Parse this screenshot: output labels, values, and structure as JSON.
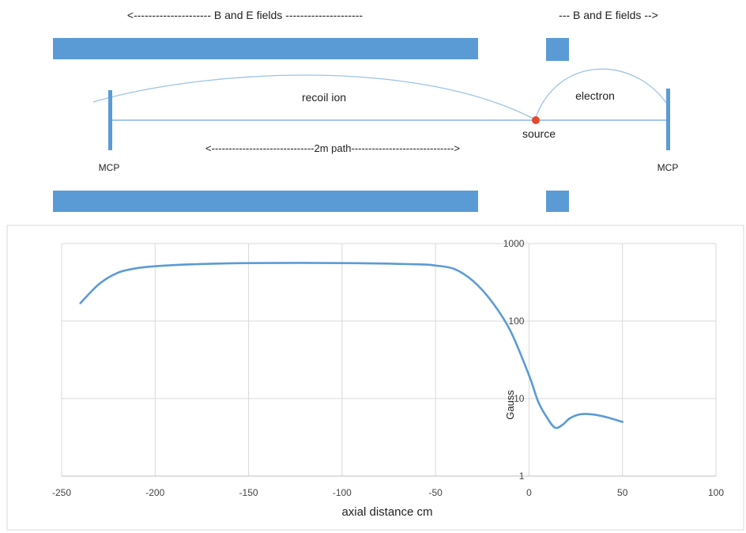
{
  "diagram": {
    "left_field_label": "<--------------------- B and E fields ---------------------",
    "right_field_label": "--- B and E fields -->",
    "recoil_label": "recoil ion",
    "electron_label": "electron",
    "source_label": "source",
    "path_label": "<------------------------------2m path------------------------------>",
    "mcp_left_label": "MCP",
    "mcp_right_label": "MCP",
    "colors": {
      "magnet": "#5b9bd5",
      "trajectory": "#9dc3e6",
      "axis_line": "#6fa8dc",
      "source": "#e8482c"
    }
  },
  "chart_data": {
    "type": "line",
    "title": "",
    "xlabel": "axial distance cm",
    "ylabel": "Gauss",
    "xlim": [
      -250,
      100
    ],
    "ylim": [
      1,
      1000
    ],
    "yscale": "log",
    "x_ticks": [
      "-250",
      "-200",
      "-150",
      "-100",
      "-50",
      "0",
      "50",
      "100"
    ],
    "y_ticks": [
      "1",
      "10",
      "100",
      "1000"
    ],
    "grid": true,
    "line_color": "#5b9bd5",
    "series": [
      {
        "name": "",
        "x": [
          -240,
          -230,
          -220,
          -210,
          -200,
          -180,
          -150,
          -100,
          -60,
          -50,
          -40,
          -30,
          -20,
          -10,
          0,
          5,
          10,
          14,
          18,
          22,
          28,
          35,
          42,
          50
        ],
        "y": [
          170,
          300,
          420,
          480,
          510,
          540,
          560,
          560,
          540,
          520,
          470,
          330,
          180,
          75,
          20,
          9,
          5.5,
          4.2,
          4.6,
          5.6,
          6.3,
          6.2,
          5.7,
          5.0
        ]
      }
    ]
  }
}
